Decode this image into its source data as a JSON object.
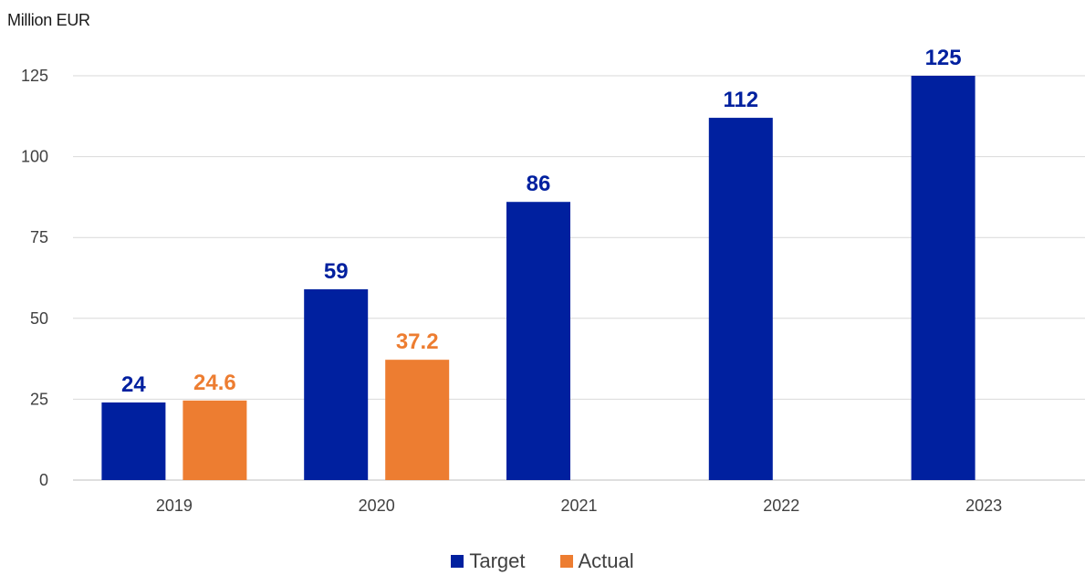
{
  "chart_data": {
    "type": "bar",
    "ylabel": "Million EUR",
    "categories": [
      "2019",
      "2020",
      "2021",
      "2022",
      "2023"
    ],
    "series": [
      {
        "name": "Target",
        "color": "#00209F",
        "values": [
          24,
          59,
          86,
          112,
          125
        ],
        "labels": [
          "24",
          "59",
          "86",
          "112",
          "125"
        ]
      },
      {
        "name": "Actual",
        "color": "#ED7D31",
        "values": [
          24.6,
          37.2,
          null,
          null,
          null
        ],
        "labels": [
          "24.6",
          "37.2",
          "",
          "",
          ""
        ]
      }
    ],
    "yticks": [
      "0",
      "25",
      "50",
      "75",
      "100",
      "125"
    ],
    "ylim": [
      0,
      125
    ],
    "grid": true,
    "legend_position": "bottom"
  }
}
